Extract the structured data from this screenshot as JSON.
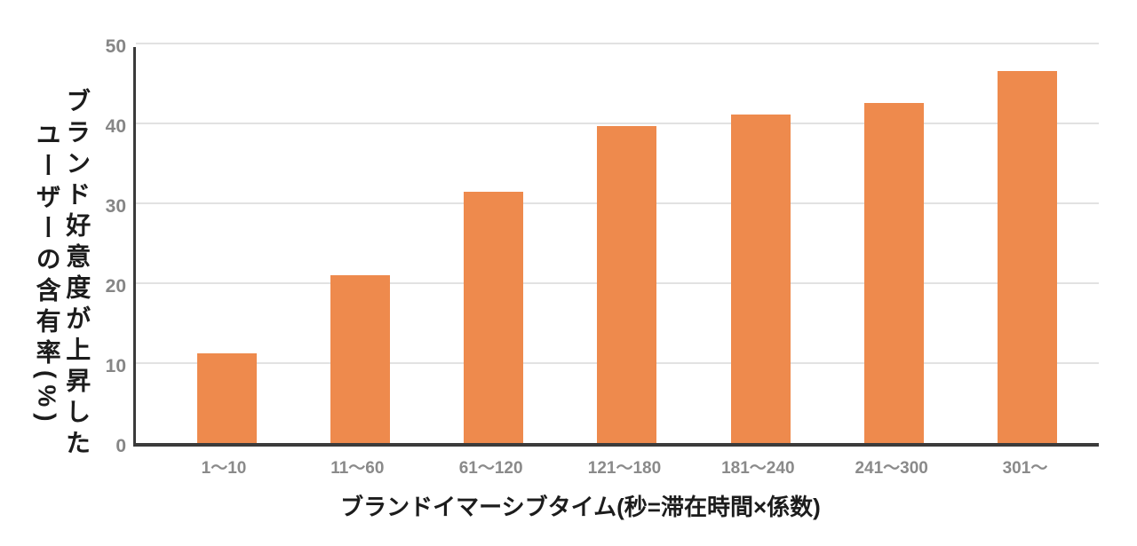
{
  "chart_data": {
    "type": "bar",
    "categories": [
      "1〜10",
      "11〜60",
      "61〜120",
      "121〜180",
      "181〜240",
      "241〜300",
      "301〜"
    ],
    "values": [
      11.2,
      21.0,
      31.5,
      39.7,
      41.1,
      42.6,
      46.6
    ],
    "title": "",
    "xlabel": "ブランドイマーシブタイム(秒=滞在時間×係数)",
    "ylabel": "ブランド好意度が上昇した\nユーザーの含有率(%)",
    "ylim": [
      0,
      50
    ],
    "yticks": [
      0,
      10,
      20,
      30,
      40,
      50
    ],
    "grid": true,
    "legend": "none",
    "bar_color": "#ee8a4d"
  },
  "colors": {
    "background": "#ffffff",
    "bar": "#ee8a4d",
    "axis_line": "#3b3b3b",
    "gridline": "#e2e2e2",
    "tick_text": "#868686",
    "label_text": "#1c1c1c"
  }
}
